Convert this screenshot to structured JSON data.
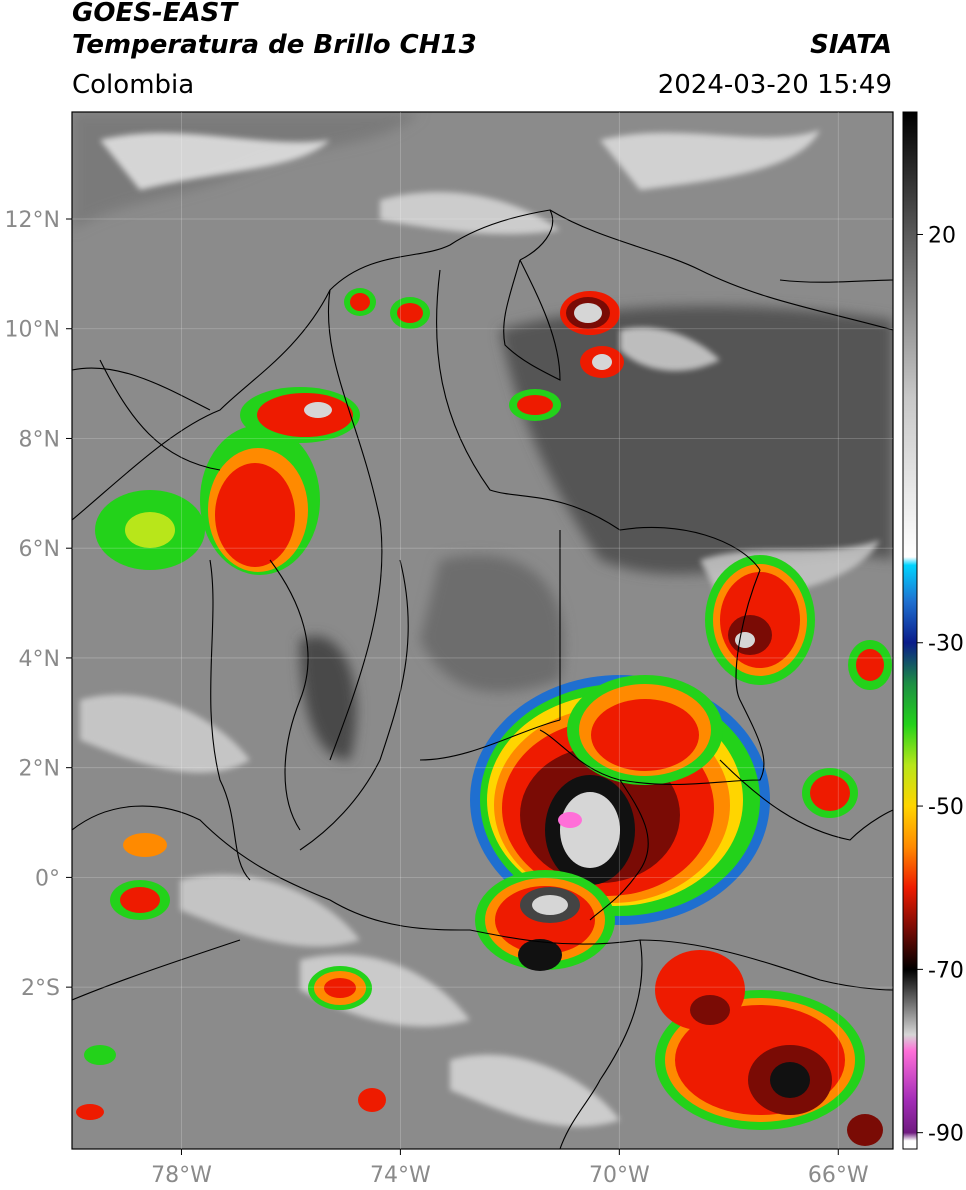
{
  "header": {
    "satellite": "GOES-EAST",
    "product": "Temperatura de Brillo CH13",
    "region": "Colombia",
    "source": "SIATA",
    "datetime": "2024-03-20 15:49"
  },
  "axes": {
    "lat_labels": [
      {
        "text": "12°N",
        "lat": 12
      },
      {
        "text": "10°N",
        "lat": 10
      },
      {
        "text": "8°N",
        "lat": 8
      },
      {
        "text": "6°N",
        "lat": 6
      },
      {
        "text": "4°N",
        "lat": 4
      },
      {
        "text": "2°N",
        "lat": 2
      },
      {
        "text": "0°",
        "lat": 0
      },
      {
        "text": "2°S",
        "lat": -2
      }
    ],
    "lon_labels": [
      {
        "text": "78°W",
        "lon": -78
      },
      {
        "text": "74°W",
        "lon": -74
      },
      {
        "text": "70°W",
        "lon": -70
      },
      {
        "text": "66°W",
        "lon": -66
      }
    ],
    "lat_range": [
      -4.95,
      13.95
    ],
    "lon_range": [
      -80,
      -65
    ]
  },
  "colorbar": {
    "range": [
      -92,
      35
    ],
    "ticks": [
      {
        "text": "20",
        "value": 20
      },
      {
        "text": "-30",
        "value": -30
      },
      {
        "text": "-50",
        "value": -50
      },
      {
        "text": "-70",
        "value": -70
      },
      {
        "text": "-90",
        "value": -90
      }
    ],
    "stops": [
      {
        "value": 35,
        "color": "#000000"
      },
      {
        "value": 20,
        "color": "#5a5a5a"
      },
      {
        "value": 0,
        "color": "#c8c8c8"
      },
      {
        "value": -19.5,
        "color": "#ffffff"
      },
      {
        "value": -20.5,
        "color": "#00d4ff"
      },
      {
        "value": -25,
        "color": "#1f6fd0"
      },
      {
        "value": -30,
        "color": "#0a1c8a"
      },
      {
        "value": -35,
        "color": "#1d8f44"
      },
      {
        "value": -40,
        "color": "#23d21a"
      },
      {
        "value": -45,
        "color": "#b8e61a"
      },
      {
        "value": -50,
        "color": "#ffd500"
      },
      {
        "value": -55,
        "color": "#ff8a00"
      },
      {
        "value": -60,
        "color": "#ee1b00"
      },
      {
        "value": -65,
        "color": "#7a0b05"
      },
      {
        "value": -70,
        "color": "#000000"
      },
      {
        "value": -78,
        "color": "#d6d6d6"
      },
      {
        "value": -80,
        "color": "#ff6fd8"
      },
      {
        "value": -86,
        "color": "#a32cb7"
      },
      {
        "value": -90,
        "color": "#6f1b80"
      },
      {
        "value": -91,
        "color": "#ffffff"
      }
    ]
  },
  "palette": {
    "background_cloudfree": "#8b8b8b",
    "sea_warm": "#9a9a9a",
    "cirrus": "#f0f0f0",
    "border_line": "#000000"
  }
}
